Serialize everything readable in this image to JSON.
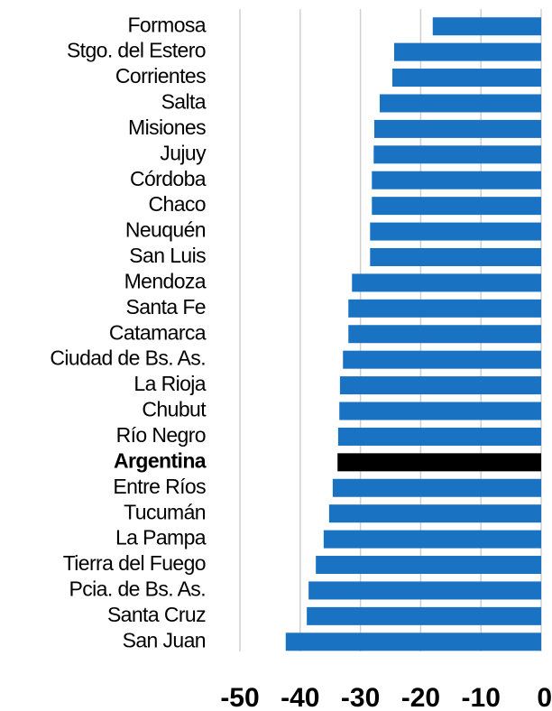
{
  "chart_data": {
    "type": "barh",
    "categories": [
      "Formosa",
      "Stgo. del Estero",
      "Corrientes",
      "Salta",
      "Misiones",
      "Jujuy",
      "Córdoba",
      "Chaco",
      "Neuquén",
      "San Luis",
      "Mendoza",
      "Santa Fe",
      "Catamarca",
      "Ciudad de Bs. As.",
      "La Rioja",
      "Chubut",
      "Río Negro",
      "Argentina",
      "Entre Ríos",
      "Tucumán",
      "La Pampa",
      "Tierra del Fuego",
      "Pcia. de Bs. As.",
      "Santa Cruz",
      "San Juan"
    ],
    "values": [
      -18.0,
      -24.4,
      -24.7,
      -26.8,
      -27.7,
      -27.8,
      -28.1,
      -28.1,
      -28.4,
      -28.4,
      -31.4,
      -32.0,
      -32.0,
      -32.9,
      -33.4,
      -33.5,
      -33.7,
      -33.8,
      -34.6,
      -35.2,
      -36.1,
      -37.4,
      -38.6,
      -38.9,
      -42.4
    ],
    "colors": [
      "#1a72c2",
      "#1a72c2",
      "#1a72c2",
      "#1a72c2",
      "#1a72c2",
      "#1a72c2",
      "#1a72c2",
      "#1a72c2",
      "#1a72c2",
      "#1a72c2",
      "#1a72c2",
      "#1a72c2",
      "#1a72c2",
      "#1a72c2",
      "#1a72c2",
      "#1a72c2",
      "#1a72c2",
      "#000000",
      "#1a72c2",
      "#1a72c2",
      "#1a72c2",
      "#1a72c2",
      "#1a72c2",
      "#1a72c2",
      "#1a72c2"
    ],
    "bold_categories": [
      false,
      false,
      false,
      false,
      false,
      false,
      false,
      false,
      false,
      false,
      false,
      false,
      false,
      false,
      false,
      false,
      false,
      true,
      false,
      false,
      false,
      false,
      false,
      false,
      false
    ],
    "xlim": [
      -50,
      0
    ],
    "xticks": [
      -50,
      -40,
      -30,
      -20,
      -10,
      0
    ],
    "grid": true
  }
}
